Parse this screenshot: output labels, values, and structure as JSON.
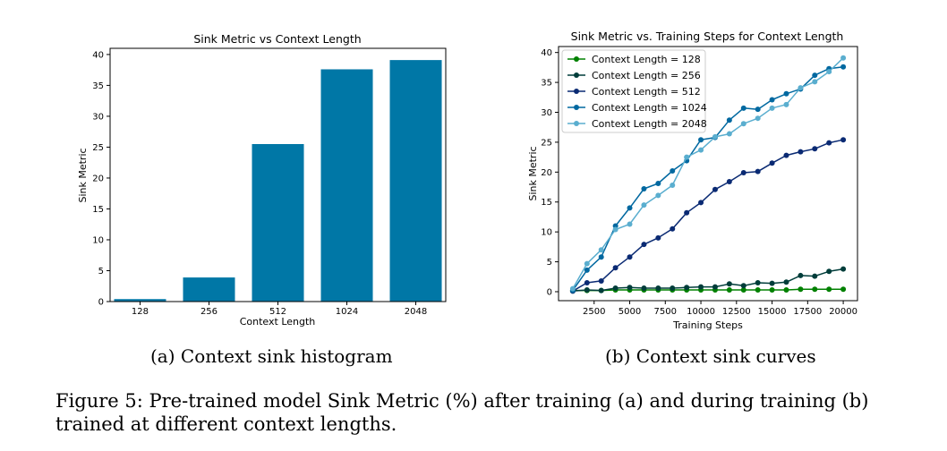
{
  "chart_data": [
    {
      "type": "bar",
      "title": "Sink Metric vs Context Length",
      "xlabel": "Context Length",
      "ylabel": "Sink Metric",
      "categories": [
        "128",
        "256",
        "512",
        "1024",
        "2048"
      ],
      "values": [
        0.4,
        3.9,
        25.5,
        37.6,
        39.1
      ],
      "ylim": [
        0,
        41
      ],
      "yticks": [
        0,
        5,
        10,
        15,
        20,
        25,
        30,
        35,
        40
      ],
      "color": "#0077a6"
    },
    {
      "type": "line",
      "title": "Sink Metric vs. Training Steps for Context Length",
      "xlabel": "Training Steps",
      "ylabel": "Sink Metric",
      "xlim": [
        0,
        21000
      ],
      "ylim": [
        -1.5,
        41
      ],
      "xticks": [
        2500,
        5000,
        7500,
        10000,
        12500,
        15000,
        17500,
        20000
      ],
      "yticks": [
        0,
        5,
        10,
        15,
        20,
        25,
        30,
        35,
        40
      ],
      "legend_position": "top-left",
      "x": [
        1000,
        2000,
        3000,
        4000,
        5000,
        6000,
        7000,
        8000,
        9000,
        10000,
        11000,
        12000,
        13000,
        14000,
        15000,
        16000,
        17000,
        18000,
        19000,
        20000
      ],
      "series": [
        {
          "name": "Context Length = 128",
          "color": "#008000",
          "values": [
            0.2,
            0.2,
            0.2,
            0.3,
            0.3,
            0.3,
            0.3,
            0.3,
            0.3,
            0.3,
            0.3,
            0.3,
            0.3,
            0.3,
            0.3,
            0.3,
            0.4,
            0.4,
            0.4,
            0.4
          ]
        },
        {
          "name": "Context Length = 256",
          "color": "#003d3a",
          "values": [
            0.1,
            0.3,
            0.2,
            0.6,
            0.7,
            0.6,
            0.6,
            0.6,
            0.7,
            0.8,
            0.8,
            1.3,
            1.0,
            1.5,
            1.4,
            1.6,
            2.7,
            2.6,
            3.4,
            3.8
          ]
        },
        {
          "name": "Context Length = 512",
          "color": "#0a2a73",
          "values": [
            0.1,
            1.5,
            1.8,
            4.0,
            5.8,
            7.9,
            9.0,
            10.5,
            13.2,
            14.9,
            17.1,
            18.4,
            19.9,
            20.1,
            21.5,
            22.8,
            23.4,
            23.9,
            24.9,
            25.4
          ]
        },
        {
          "name": "Context Length = 1024",
          "color": "#0068a0",
          "values": [
            0.2,
            3.6,
            5.8,
            11.0,
            14.0,
            17.2,
            18.1,
            20.2,
            21.9,
            25.4,
            25.8,
            28.7,
            30.7,
            30.5,
            32.1,
            33.1,
            33.9,
            36.2,
            37.3,
            37.6
          ]
        },
        {
          "name": "Context Length = 2048",
          "color": "#5aaecf",
          "values": [
            0.5,
            4.7,
            7.0,
            10.4,
            11.3,
            14.5,
            16.1,
            17.8,
            22.5,
            23.7,
            25.9,
            26.4,
            28.1,
            29.0,
            30.7,
            31.3,
            34.1,
            35.1,
            36.8,
            39.1
          ]
        }
      ]
    }
  ],
  "subcaptions": {
    "a": "(a) Context sink histogram",
    "b": "(b) Context sink curves"
  },
  "caption": "Figure 5: Pre-trained model Sink Metric (%) after training (a) and during training (b) trained at different context lengths."
}
